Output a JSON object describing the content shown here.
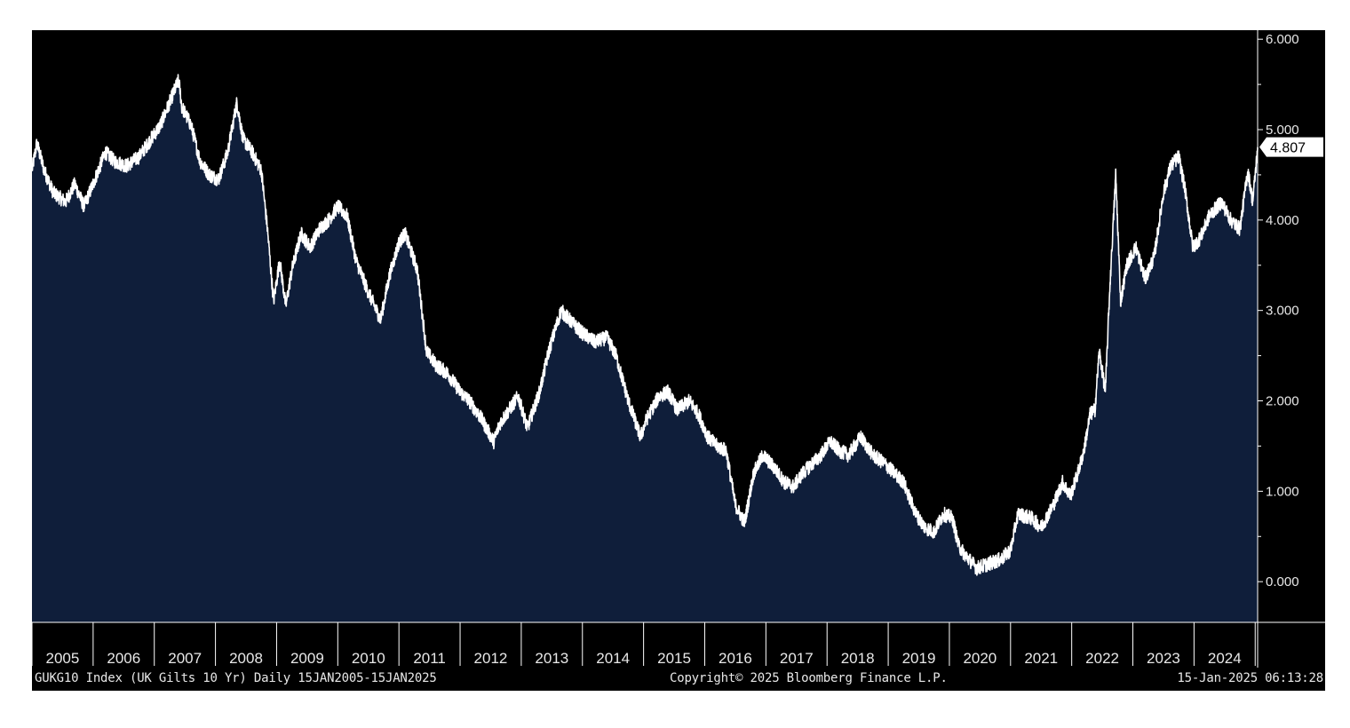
{
  "colors": {
    "background": "#000000",
    "area_fill": "#0f1e3a",
    "line": "#ffffff",
    "axis": "#ffffff",
    "text": "#e8e8e8"
  },
  "footer": {
    "left": "GUKG10 Index (UK Gilts 10 Yr)  Daily 15JAN2005-15JAN2025",
    "center": "Copyright© 2025 Bloomberg Finance L.P.",
    "right": "15-Jan-2025 06:13:28"
  },
  "chart_data": {
    "type": "area",
    "title": "GUKG10 Index (UK Gilts 10 Yr)",
    "x_range": [
      2005.0,
      2025.04
    ],
    "ylim": [
      -0.45,
      6.1
    ],
    "y_ticks": [
      0,
      1,
      2,
      3,
      4,
      5,
      6
    ],
    "y_tick_labels": [
      "0.000",
      "1.000",
      "2.000",
      "3.000",
      "4.000",
      "5.000",
      "6.000"
    ],
    "x_ticks": [
      2005,
      2006,
      2007,
      2008,
      2009,
      2010,
      2011,
      2012,
      2013,
      2014,
      2015,
      2016,
      2017,
      2018,
      2019,
      2020,
      2021,
      2022,
      2023,
      2024,
      2025
    ],
    "x_tick_labels": [
      "2005",
      "2006",
      "2007",
      "2008",
      "2009",
      "2010",
      "2011",
      "2012",
      "2013",
      "2014",
      "2015",
      "2016",
      "2017",
      "2018",
      "2019",
      "2020",
      "2021",
      "2022",
      "2023",
      "2024"
    ],
    "last_value": 4.807,
    "last_value_label": "4.807",
    "series": [
      {
        "name": "GUKG10",
        "x": [
          2005.0,
          2005.08,
          2005.2,
          2005.35,
          2005.55,
          2005.7,
          2005.85,
          2006.0,
          2006.2,
          2006.35,
          2006.55,
          2006.75,
          2006.9,
          2007.1,
          2007.25,
          2007.4,
          2007.45,
          2007.6,
          2007.75,
          2007.9,
          2008.05,
          2008.2,
          2008.35,
          2008.45,
          2008.6,
          2008.75,
          2008.85,
          2008.95,
          2009.05,
          2009.15,
          2009.25,
          2009.4,
          2009.55,
          2009.7,
          2009.85,
          2010.0,
          2010.15,
          2010.3,
          2010.5,
          2010.7,
          2010.85,
          2011.0,
          2011.1,
          2011.3,
          2011.45,
          2011.6,
          2011.8,
          2012.0,
          2012.15,
          2012.35,
          2012.55,
          2012.65,
          2012.8,
          2012.95,
          2013.1,
          2013.3,
          2013.45,
          2013.65,
          2013.85,
          2014.0,
          2014.2,
          2014.4,
          2014.55,
          2014.75,
          2014.95,
          2015.05,
          2015.25,
          2015.4,
          2015.55,
          2015.75,
          2015.9,
          2016.05,
          2016.2,
          2016.35,
          2016.5,
          2016.65,
          2016.8,
          2016.95,
          2017.15,
          2017.3,
          2017.45,
          2017.6,
          2017.75,
          2017.9,
          2018.05,
          2018.2,
          2018.35,
          2018.55,
          2018.75,
          2018.95,
          2019.1,
          2019.25,
          2019.45,
          2019.6,
          2019.75,
          2019.9,
          2020.05,
          2020.15,
          2020.25,
          2020.45,
          2020.65,
          2020.85,
          2021.0,
          2021.12,
          2021.35,
          2021.5,
          2021.7,
          2021.85,
          2021.98,
          2022.1,
          2022.2,
          2022.3,
          2022.38,
          2022.45,
          2022.55,
          2022.62,
          2022.72,
          2022.8,
          2022.9,
          2023.05,
          2023.2,
          2023.35,
          2023.5,
          2023.62,
          2023.75,
          2023.85,
          2023.98,
          2024.1,
          2024.25,
          2024.45,
          2024.6,
          2024.75,
          2024.88,
          2024.96,
          2025.02,
          2025.04
        ],
        "values": [
          4.55,
          4.85,
          4.55,
          4.3,
          4.2,
          4.4,
          4.15,
          4.4,
          4.75,
          4.65,
          4.6,
          4.7,
          4.85,
          5.05,
          5.3,
          5.55,
          5.25,
          5.05,
          4.65,
          4.5,
          4.45,
          4.75,
          5.3,
          4.9,
          4.75,
          4.55,
          3.9,
          3.1,
          3.55,
          3.05,
          3.45,
          3.85,
          3.7,
          3.9,
          4.0,
          4.15,
          4.05,
          3.55,
          3.2,
          2.9,
          3.4,
          3.75,
          3.85,
          3.45,
          2.55,
          2.4,
          2.3,
          2.1,
          2.0,
          1.8,
          1.55,
          1.75,
          1.9,
          2.05,
          1.7,
          2.1,
          2.55,
          3.0,
          2.85,
          2.75,
          2.65,
          2.7,
          2.5,
          2.0,
          1.6,
          1.8,
          2.05,
          2.1,
          1.9,
          2.0,
          1.85,
          1.6,
          1.5,
          1.45,
          0.85,
          0.65,
          1.2,
          1.4,
          1.25,
          1.1,
          1.05,
          1.2,
          1.3,
          1.4,
          1.55,
          1.45,
          1.4,
          1.6,
          1.4,
          1.3,
          1.2,
          1.1,
          0.75,
          0.6,
          0.55,
          0.75,
          0.7,
          0.4,
          0.3,
          0.15,
          0.2,
          0.25,
          0.35,
          0.75,
          0.7,
          0.6,
          0.85,
          1.1,
          0.95,
          1.2,
          1.45,
          1.85,
          1.9,
          2.55,
          2.1,
          3.2,
          4.5,
          3.1,
          3.5,
          3.7,
          3.35,
          3.6,
          4.3,
          4.6,
          4.7,
          4.35,
          3.7,
          3.8,
          4.05,
          4.2,
          4.0,
          3.9,
          4.55,
          4.2,
          4.65,
          4.807
        ]
      }
    ]
  }
}
